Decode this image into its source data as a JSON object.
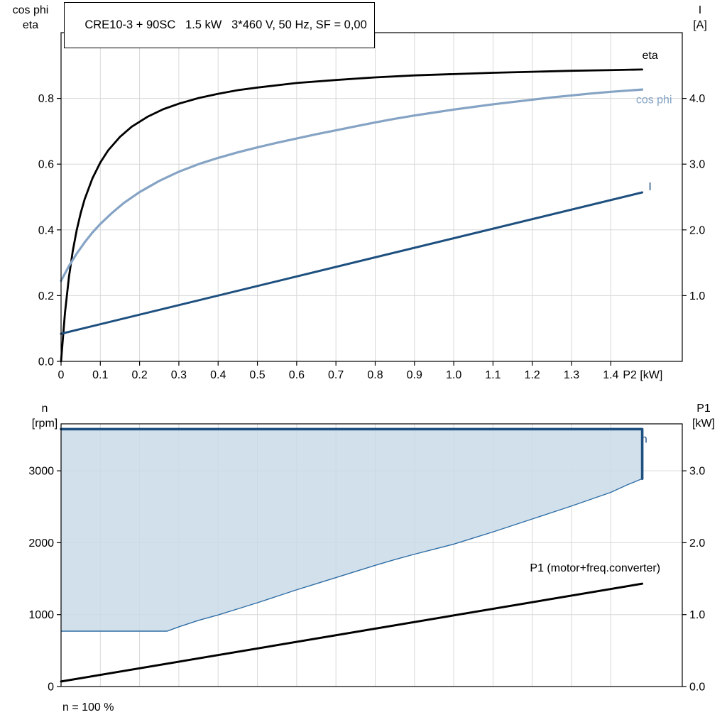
{
  "page": {
    "note": "n = 100 %"
  },
  "colors": {
    "black": "#000000",
    "cos_phi": "#85a3c4",
    "navy": "#1d4f7f",
    "band_fill": "#cadbe9",
    "band_edge": "#2e6da4",
    "grid": "#d8d8d8",
    "frame": "#000000"
  },
  "chart_data": [
    {
      "id": "top",
      "type": "line",
      "title_box": "CRE10-3 + 90SC   1.5 kW   3*460 V, 50 Hz, SF = 0,00",
      "left_axis_label": [
        "cos phi",
        "eta"
      ],
      "right_axis_label": [
        "I",
        "[A]"
      ],
      "x_label": "P2 [kW]",
      "x_range": [
        0,
        1.582
      ],
      "left_range": [
        0,
        1.0
      ],
      "right_range": [
        0,
        5.0
      ],
      "show_x_tick_labels": true,
      "x_ticks": [
        {
          "v": 0,
          "label": "0"
        },
        {
          "v": 0.1,
          "label": "0.1"
        },
        {
          "v": 0.2,
          "label": "0.2"
        },
        {
          "v": 0.3,
          "label": "0.3"
        },
        {
          "v": 0.4,
          "label": "0.4"
        },
        {
          "v": 0.5,
          "label": "0.5"
        },
        {
          "v": 0.6,
          "label": "0.6"
        },
        {
          "v": 0.7,
          "label": "0.7"
        },
        {
          "v": 0.8,
          "label": "0.8"
        },
        {
          "v": 0.9,
          "label": "0.9"
        },
        {
          "v": 1.0,
          "label": "1.0"
        },
        {
          "v": 1.1,
          "label": "1.1"
        },
        {
          "v": 1.2,
          "label": "1.2"
        },
        {
          "v": 1.3,
          "label": "1.3"
        },
        {
          "v": 1.4,
          "label": "1.4"
        }
      ],
      "left_ticks": [
        {
          "v": 0,
          "label": "0.0"
        },
        {
          "v": 0.2,
          "label": "0.2"
        },
        {
          "v": 0.4,
          "label": "0.4"
        },
        {
          "v": 0.6,
          "label": "0.6"
        },
        {
          "v": 0.8,
          "label": "0.8"
        }
      ],
      "right_ticks": [
        {
          "v": 1.0,
          "label": "1.0"
        },
        {
          "v": 2.0,
          "label": "2.0"
        },
        {
          "v": 3.0,
          "label": "3.0"
        },
        {
          "v": 4.0,
          "label": "4.0"
        }
      ],
      "series": [
        {
          "name": "eta",
          "axis": "left",
          "color_key": "black",
          "width": 2.8,
          "label": "eta",
          "label_at": [
            1.5,
            0.92
          ],
          "points": [
            [
              0,
              0
            ],
            [
              0.01,
              0.148
            ],
            [
              0.02,
              0.256
            ],
            [
              0.03,
              0.337
            ],
            [
              0.04,
              0.4
            ],
            [
              0.05,
              0.451
            ],
            [
              0.06,
              0.493
            ],
            [
              0.08,
              0.557
            ],
            [
              0.1,
              0.605
            ],
            [
              0.12,
              0.642
            ],
            [
              0.15,
              0.683
            ],
            [
              0.18,
              0.714
            ],
            [
              0.22,
              0.744
            ],
            [
              0.26,
              0.767
            ],
            [
              0.3,
              0.784
            ],
            [
              0.35,
              0.801
            ],
            [
              0.4,
              0.814
            ],
            [
              0.45,
              0.825
            ],
            [
              0.5,
              0.833
            ],
            [
              0.6,
              0.847
            ],
            [
              0.7,
              0.856
            ],
            [
              0.8,
              0.864
            ],
            [
              0.9,
              0.87
            ],
            [
              1.0,
              0.874
            ],
            [
              1.1,
              0.878
            ],
            [
              1.2,
              0.881
            ],
            [
              1.3,
              0.884
            ],
            [
              1.4,
              0.886
            ],
            [
              1.48,
              0.888
            ]
          ]
        },
        {
          "name": "cos phi",
          "axis": "left",
          "color_key": "cos_phi",
          "width": 3.2,
          "label": "cos phi",
          "label_at": [
            1.51,
            0.785
          ],
          "points": [
            [
              0,
              0.245
            ],
            [
              0.02,
              0.29
            ],
            [
              0.04,
              0.328
            ],
            [
              0.06,
              0.362
            ],
            [
              0.08,
              0.392
            ],
            [
              0.1,
              0.418
            ],
            [
              0.13,
              0.452
            ],
            [
              0.16,
              0.482
            ],
            [
              0.2,
              0.515
            ],
            [
              0.25,
              0.549
            ],
            [
              0.3,
              0.577
            ],
            [
              0.35,
              0.6
            ],
            [
              0.4,
              0.619
            ],
            [
              0.45,
              0.636
            ],
            [
              0.5,
              0.651
            ],
            [
              0.55,
              0.665
            ],
            [
              0.6,
              0.678
            ],
            [
              0.65,
              0.691
            ],
            [
              0.7,
              0.703
            ],
            [
              0.75,
              0.715
            ],
            [
              0.8,
              0.727
            ],
            [
              0.85,
              0.738
            ],
            [
              0.9,
              0.748
            ],
            [
              0.95,
              0.757
            ],
            [
              1.0,
              0.766
            ],
            [
              1.05,
              0.774
            ],
            [
              1.1,
              0.782
            ],
            [
              1.15,
              0.789
            ],
            [
              1.2,
              0.796
            ],
            [
              1.25,
              0.803
            ],
            [
              1.3,
              0.809
            ],
            [
              1.35,
              0.815
            ],
            [
              1.4,
              0.82
            ],
            [
              1.48,
              0.827
            ]
          ]
        },
        {
          "name": "I",
          "axis": "right",
          "color_key": "navy",
          "width": 3.0,
          "label": "I",
          "label_at": [
            1.5,
            2.6
          ],
          "points": [
            [
              0,
              0.42
            ],
            [
              1.48,
              2.57
            ]
          ]
        }
      ]
    },
    {
      "id": "bottom",
      "type": "line",
      "left_axis_label": [
        "n",
        "[rpm]"
      ],
      "right_axis_label": [
        "P1",
        "[kW]"
      ],
      "x_range": [
        0,
        1.582
      ],
      "left_range": [
        0,
        3653
      ],
      "right_range": [
        0,
        3.653
      ],
      "show_x_tick_labels": false,
      "x_ticks": [
        {
          "v": 0,
          "label": ""
        },
        {
          "v": 0.1,
          "label": ""
        },
        {
          "v": 0.2,
          "label": ""
        },
        {
          "v": 0.3,
          "label": ""
        },
        {
          "v": 0.4,
          "label": ""
        },
        {
          "v": 0.5,
          "label": ""
        },
        {
          "v": 0.6,
          "label": ""
        },
        {
          "v": 0.7,
          "label": ""
        },
        {
          "v": 0.8,
          "label": ""
        },
        {
          "v": 0.9,
          "label": ""
        },
        {
          "v": 1.0,
          "label": ""
        },
        {
          "v": 1.1,
          "label": ""
        },
        {
          "v": 1.2,
          "label": ""
        },
        {
          "v": 1.3,
          "label": ""
        },
        {
          "v": 1.4,
          "label": ""
        }
      ],
      "left_ticks": [
        {
          "v": 0,
          "label": "0"
        },
        {
          "v": 1000,
          "label": "1000"
        },
        {
          "v": 2000,
          "label": "2000"
        },
        {
          "v": 3000,
          "label": "3000"
        }
      ],
      "right_ticks": [
        {
          "v": 0,
          "label": "0.0"
        },
        {
          "v": 1.0,
          "label": "1.0"
        },
        {
          "v": 2.0,
          "label": "2.0"
        },
        {
          "v": 3.0,
          "label": "3.0"
        }
      ],
      "band": {
        "upper": [
          [
            0,
            3580
          ],
          [
            1.48,
            3580
          ]
        ],
        "lower": [
          [
            0,
            770
          ],
          [
            0.27,
            770
          ],
          [
            0.3,
            830
          ],
          [
            0.35,
            920
          ],
          [
            0.4,
            995
          ],
          [
            0.45,
            1080
          ],
          [
            0.5,
            1165
          ],
          [
            0.55,
            1255
          ],
          [
            0.6,
            1345
          ],
          [
            0.65,
            1430
          ],
          [
            0.7,
            1515
          ],
          [
            0.75,
            1600
          ],
          [
            0.8,
            1685
          ],
          [
            0.85,
            1765
          ],
          [
            0.9,
            1840
          ],
          [
            0.95,
            1910
          ],
          [
            1.0,
            1980
          ],
          [
            1.05,
            2065
          ],
          [
            1.1,
            2150
          ],
          [
            1.15,
            2240
          ],
          [
            1.2,
            2330
          ],
          [
            1.25,
            2420
          ],
          [
            1.3,
            2510
          ],
          [
            1.35,
            2605
          ],
          [
            1.4,
            2700
          ],
          [
            1.44,
            2800
          ],
          [
            1.48,
            2890
          ]
        ]
      },
      "series": [
        {
          "name": "n",
          "axis": "left",
          "color_key": "navy",
          "width": 3.6,
          "label": "n",
          "label_at": [
            1.485,
            3390
          ],
          "points": [
            [
              0,
              3580
            ],
            [
              1.48,
              3580
            ],
            [
              1.48,
              2890
            ]
          ]
        },
        {
          "name": "P1",
          "axis": "right",
          "color_key": "black",
          "width": 3.0,
          "label": "P1 (motor+freq.converter)",
          "label_at": [
            1.36,
            1.6
          ],
          "points": [
            [
              0,
              0.07
            ],
            [
              1.48,
              1.43
            ]
          ]
        }
      ]
    }
  ]
}
